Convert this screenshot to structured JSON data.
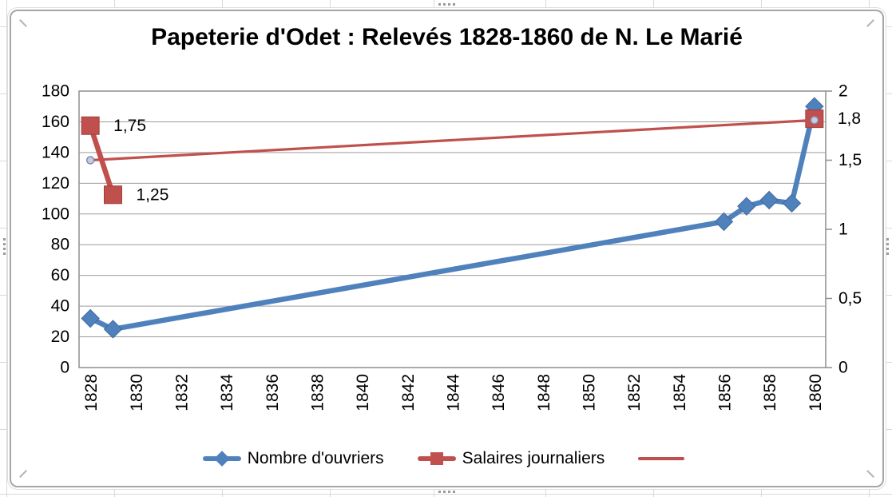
{
  "app": {
    "surface": "spreadsheet-with-embedded-chart",
    "chart_selected": true
  },
  "colors": {
    "series_blue": "#4F81BD",
    "series_red": "#C0504D",
    "trendline_red": "#C0504D",
    "gridline": "#9c9c9c",
    "plot_border": "#8e8e8e",
    "text": "#000000",
    "trend_marker_fill": "#cbcbde",
    "trend_marker_stroke": "#7e8cad"
  },
  "chart_data": {
    "type": "line",
    "title": "Papeterie d'Odet : Relevés 1828-1860 de N. Le Marié",
    "x_axis": {
      "min_year": 1828,
      "max_year": 1860,
      "categories_count": 33,
      "tick_labels": [
        "1828",
        "1830",
        "1832",
        "1834",
        "1836",
        "1838",
        "1840",
        "1842",
        "1844",
        "1846",
        "1848",
        "1850",
        "1852",
        "1854",
        "1856",
        "1858",
        "1860"
      ],
      "tick_label_rotation_deg": -90
    },
    "left_axis": {
      "min": 0,
      "max": 180,
      "step": 20,
      "tick_labels": [
        "0",
        "20",
        "40",
        "60",
        "80",
        "100",
        "120",
        "140",
        "160",
        "180"
      ]
    },
    "right_axis": {
      "min": 0,
      "max": 2,
      "step": 0.5,
      "tick_labels": [
        "0",
        "0,5",
        "1",
        "1,5",
        "2"
      ]
    },
    "grid": "horizontal-major",
    "legend_position": "bottom",
    "series": [
      {
        "name": "Nombre d'ouvriers",
        "axis": "left",
        "marker": "diamond",
        "line_width": 6.5,
        "points": [
          [
            1828,
            32
          ],
          [
            1829,
            25
          ],
          [
            1856,
            95
          ],
          [
            1857,
            105
          ],
          [
            1858,
            109
          ],
          [
            1859,
            107
          ],
          [
            1860,
            170
          ]
        ],
        "connect_all": true
      },
      {
        "name": "Salaires journaliers",
        "axis": "right",
        "marker": "square",
        "line_width": 6.5,
        "points": [
          [
            1828,
            1.75
          ],
          [
            1829,
            1.25
          ],
          [
            1860,
            1.8
          ]
        ],
        "line_segments": [
          [
            [
              1828,
              1.75
            ],
            [
              1829,
              1.25
            ]
          ]
        ],
        "data_labels": [
          {
            "year": 1828,
            "value": 1.75,
            "text": "1,75"
          },
          {
            "year": 1829,
            "value": 1.25,
            "text": "1,25"
          },
          {
            "year": 1860,
            "value": 1.8,
            "text": "1,8"
          }
        ]
      },
      {
        "name": "",
        "role": "trendline",
        "axis": "right",
        "marker": "small-circle",
        "line_width": 3.2,
        "points": [
          [
            1828,
            1.5
          ],
          [
            1860,
            1.79
          ]
        ],
        "connect_all": true
      }
    ]
  },
  "legend": {
    "items": [
      {
        "label": "Nombre d'ouvriers"
      },
      {
        "label": "Salaires journaliers"
      },
      {
        "label": ""
      }
    ]
  }
}
